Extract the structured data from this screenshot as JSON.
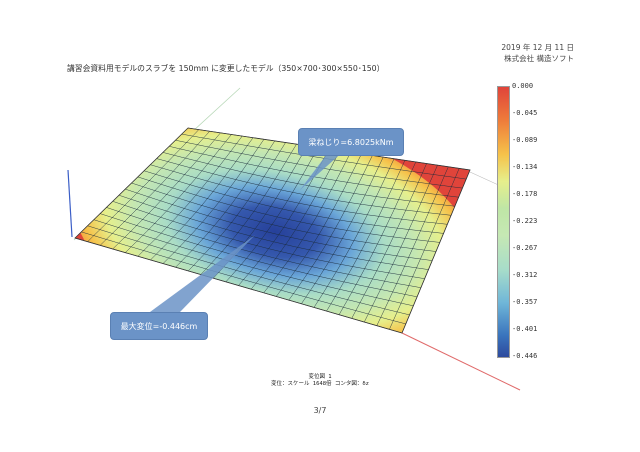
{
  "header": {
    "date": "2019 年 12 月 11 日",
    "company": "株式会社 構造ソフト"
  },
  "title": "講習会資料用モデルのスラブを 150mm に変更したモデル（350×700･300×550･150）",
  "callouts": {
    "top": "梁ねじり=6.8025kNm",
    "bottom": "最大変位=-0.446cm"
  },
  "color_scale": {
    "labels": [
      "0.000",
      "-0.045",
      "-0.089",
      "-0.134",
      "-0.178",
      "-0.223",
      "-0.267",
      "-0.312",
      "-0.357",
      "-0.401",
      "-0.446"
    ]
  },
  "footer": {
    "line1": "変位図 1",
    "line2": "変位：スケール 1648倍 コンタ図：δz"
  },
  "page": "3/7",
  "colors": {
    "max": "#e0443a",
    "mid": "#c6e8b4",
    "min": "#2d4a9d"
  }
}
